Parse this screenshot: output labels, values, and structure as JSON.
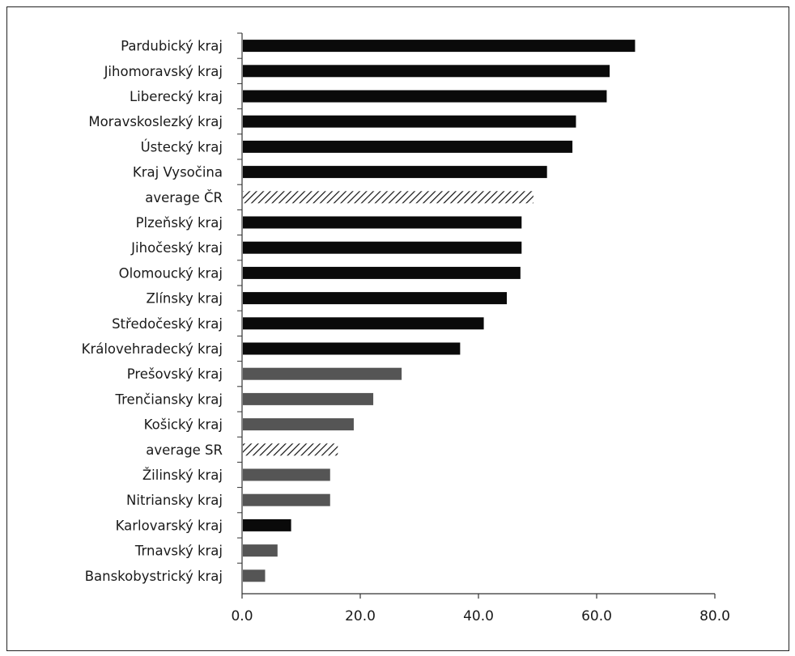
{
  "chart_data": {
    "type": "bar",
    "orientation": "horizontal",
    "title": "",
    "xlabel": "",
    "ylabel": "",
    "xlim": [
      0,
      80
    ],
    "x_ticks": [
      "0.0",
      "20.0",
      "40.0",
      "60.0",
      "80.0"
    ],
    "grid": false,
    "legend": "none",
    "categories": [
      "Pardubický kraj",
      "Jihomoravský kraj",
      "Liberecký kraj",
      "Moravskoslezký kraj",
      "Ústecký kraj",
      "Kraj Vysočina",
      "average ČR",
      "Plzeňský kraj",
      "Jihočeský kraj",
      "Olomoucký kraj",
      "Zlínsky kraj",
      "Středočeský kraj",
      "Královehradecký kraj",
      "Prešovský kraj",
      "Trenčiansky kraj",
      "Košický kraj",
      "average SR",
      "Žilinský kraj",
      "Nitriansky kraj",
      "Karlovarský kraj",
      "Trnavský kraj",
      "Banskobystrický kraj"
    ],
    "values": [
      66.5,
      62.2,
      61.7,
      56.5,
      55.9,
      51.6,
      49.3,
      47.3,
      47.3,
      47.1,
      44.8,
      40.9,
      36.9,
      27.0,
      22.2,
      18.9,
      16.2,
      14.9,
      14.9,
      8.3,
      6.0,
      3.9
    ],
    "bar_styles": [
      "cz",
      "cz",
      "cz",
      "cz",
      "cz",
      "cz",
      "avg",
      "cz",
      "cz",
      "cz",
      "cz",
      "cz",
      "cz",
      "sk",
      "sk",
      "sk",
      "avg",
      "sk",
      "sk",
      "cz",
      "sk",
      "sk"
    ],
    "colors": {
      "cz": "#0a0a0a",
      "sk": "#555555",
      "avg_stroke": "#111111",
      "axis": "#333333"
    }
  }
}
